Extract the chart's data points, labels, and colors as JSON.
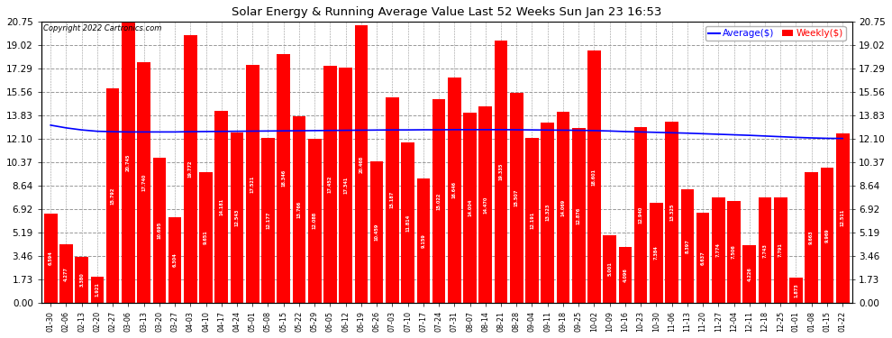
{
  "title": "Solar Energy & Running Average Value Last 52 Weeks Sun Jan 23 16:53",
  "copyright": "Copyright 2022 Cartronics.com",
  "bar_color": "#ff0000",
  "avg_line_color": "#0000ff",
  "bg_color": "#ffffff",
  "plot_bg": "#ffffff",
  "grid_color": "#999999",
  "yticks": [
    0.0,
    1.73,
    3.46,
    5.19,
    6.92,
    8.64,
    10.37,
    12.1,
    13.83,
    15.56,
    17.29,
    19.02,
    20.75
  ],
  "dates": [
    "01-30",
    "02-06",
    "02-13",
    "02-20",
    "02-27",
    "03-06",
    "03-13",
    "03-20",
    "03-27",
    "04-03",
    "04-10",
    "04-17",
    "04-24",
    "05-01",
    "05-08",
    "05-15",
    "05-22",
    "05-29",
    "06-05",
    "06-12",
    "06-19",
    "06-26",
    "07-03",
    "07-10",
    "07-17",
    "07-24",
    "07-31",
    "08-07",
    "08-14",
    "08-21",
    "08-28",
    "09-04",
    "09-11",
    "09-18",
    "09-25",
    "10-02",
    "10-09",
    "10-16",
    "10-23",
    "10-30",
    "11-06",
    "11-13",
    "11-20",
    "11-27",
    "12-04",
    "12-11",
    "12-18",
    "12-25",
    "01-01",
    "01-08",
    "01-15",
    "01-22"
  ],
  "values": [
    6.594,
    4.277,
    3.38,
    1.921,
    15.792,
    20.745,
    17.74,
    10.695,
    6.304,
    19.772,
    9.651,
    14.181,
    12.543,
    17.521,
    12.177,
    18.346,
    13.766,
    12.088,
    17.452,
    17.341,
    20.468,
    10.459,
    15.187,
    11.814,
    9.159,
    15.022,
    16.646,
    14.004,
    14.47,
    19.335,
    15.507,
    12.191,
    13.323,
    14.069,
    12.876,
    18.601,
    5.001,
    4.096,
    12.94,
    7.384,
    13.325,
    8.397,
    6.637,
    7.774,
    7.506,
    4.226,
    7.743,
    7.791,
    1.873,
    9.663,
    9.969,
    12.511
  ],
  "avg_line": [
    13.1,
    12.9,
    12.75,
    12.65,
    12.62,
    12.6,
    12.6,
    12.6,
    12.6,
    12.62,
    12.63,
    12.64,
    12.65,
    12.66,
    12.67,
    12.68,
    12.69,
    12.7,
    12.71,
    12.72,
    12.73,
    12.74,
    12.75,
    12.75,
    12.76,
    12.76,
    12.77,
    12.77,
    12.77,
    12.77,
    12.76,
    12.75,
    12.74,
    12.73,
    12.72,
    12.7,
    12.67,
    12.63,
    12.6,
    12.57,
    12.54,
    12.51,
    12.47,
    12.43,
    12.39,
    12.35,
    12.3,
    12.25,
    12.2,
    12.16,
    12.13,
    12.12
  ]
}
